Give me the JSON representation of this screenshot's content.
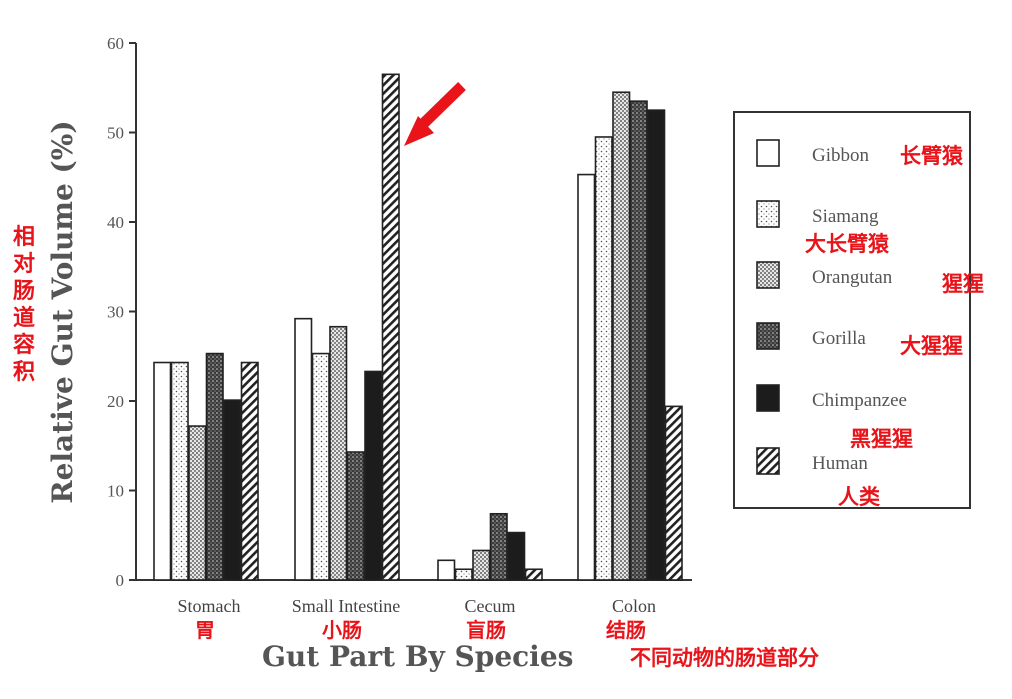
{
  "chart_data": {
    "type": "bar",
    "title": "",
    "xlabel": "Gut Part By Species",
    "xlabel_cn": "不同动物的肠道部分",
    "ylabel": "Relative Gut Volume (%)",
    "ylabel_cn": "相对肠道容积",
    "ylim": [
      0,
      60
    ],
    "yticks": [
      0,
      10,
      20,
      30,
      40,
      50,
      60
    ],
    "grid": false,
    "legend_position": "right",
    "categories": [
      "Stomach",
      "Small Intestine",
      "Cecum",
      "Colon"
    ],
    "categories_cn": [
      "胃",
      "小肠",
      "盲肠",
      "结肠"
    ],
    "series": [
      {
        "name": "Gibbon",
        "name_cn": "长臂猿",
        "pattern": "white",
        "values": [
          24.3,
          29.2,
          2.2,
          45.3
        ]
      },
      {
        "name": "Siamang",
        "name_cn": "大长臂猿",
        "pattern": "light-dots",
        "values": [
          24.3,
          25.3,
          1.2,
          49.5
        ]
      },
      {
        "name": "Orangutan",
        "name_cn": "猩猩",
        "pattern": "medium-dots",
        "values": [
          17.2,
          28.3,
          3.3,
          54.5
        ]
      },
      {
        "name": "Gorilla",
        "name_cn": "大猩猩",
        "pattern": "dense-dots",
        "values": [
          25.3,
          14.3,
          7.4,
          53.5
        ]
      },
      {
        "name": "Chimpanzee",
        "name_cn": "黑猩猩",
        "pattern": "black",
        "values": [
          20.1,
          23.3,
          5.3,
          52.5
        ]
      },
      {
        "name": "Human",
        "name_cn": "人类",
        "pattern": "hatch",
        "values": [
          24.3,
          56.5,
          1.2,
          19.4
        ]
      }
    ],
    "annotation": {
      "type": "arrow",
      "color": "#e8141a",
      "target_series": "Human",
      "target_category": "Small Intestine"
    }
  }
}
